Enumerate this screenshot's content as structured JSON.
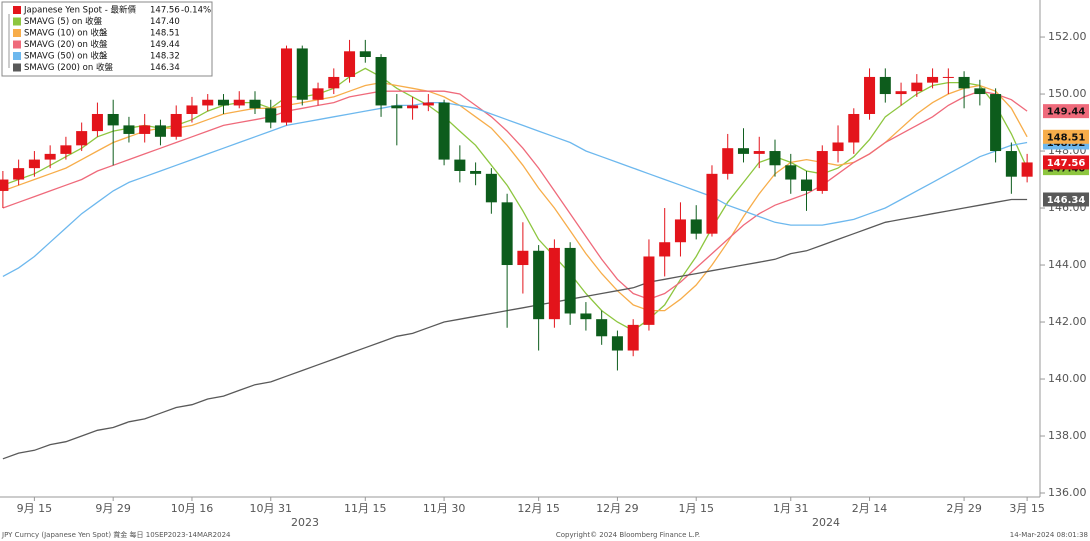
{
  "chart_data": {
    "type": "candlestick",
    "candles": {
      "name": "Japanese Yen Spot - 最新價",
      "up_color": "#e3141b",
      "down_color": "#0d5c1c",
      "last_label": "147.56",
      "change_label": "-0.14%",
      "ohlc": [
        [
          146.6,
          147.3,
          146.0,
          147.0
        ],
        [
          147.0,
          147.7,
          146.8,
          147.4
        ],
        [
          147.4,
          148.0,
          147.1,
          147.7
        ],
        [
          147.7,
          148.2,
          147.4,
          147.9
        ],
        [
          147.9,
          148.5,
          147.7,
          148.2
        ],
        [
          148.2,
          149.0,
          148.0,
          148.7
        ],
        [
          148.7,
          149.7,
          148.5,
          149.3
        ],
        [
          149.3,
          149.8,
          147.5,
          148.9
        ],
        [
          148.9,
          149.2,
          148.3,
          148.6
        ],
        [
          148.6,
          149.3,
          148.3,
          148.9
        ],
        [
          148.9,
          149.1,
          148.2,
          148.5
        ],
        [
          148.5,
          149.6,
          148.4,
          149.3
        ],
        [
          149.3,
          149.9,
          149.0,
          149.6
        ],
        [
          149.6,
          150.0,
          149.4,
          149.8
        ],
        [
          149.8,
          150.0,
          149.3,
          149.6
        ],
        [
          149.6,
          150.1,
          149.5,
          149.8
        ],
        [
          149.8,
          150.1,
          149.3,
          149.5
        ],
        [
          149.5,
          149.8,
          148.8,
          149.0
        ],
        [
          149.0,
          151.7,
          148.9,
          151.6
        ],
        [
          151.6,
          151.7,
          149.6,
          149.8
        ],
        [
          149.8,
          150.4,
          149.6,
          150.2
        ],
        [
          150.2,
          150.9,
          150.0,
          150.6
        ],
        [
          150.6,
          151.9,
          150.4,
          151.5
        ],
        [
          151.5,
          151.9,
          151.1,
          151.3
        ],
        [
          151.3,
          151.4,
          149.2,
          149.6
        ],
        [
          149.6,
          150.0,
          148.2,
          149.5
        ],
        [
          149.5,
          149.9,
          149.1,
          149.6
        ],
        [
          149.6,
          150.0,
          149.4,
          149.7
        ],
        [
          149.7,
          149.8,
          147.5,
          147.7
        ],
        [
          147.7,
          148.2,
          146.9,
          147.3
        ],
        [
          147.3,
          147.6,
          146.8,
          147.2
        ],
        [
          147.2,
          147.4,
          145.8,
          146.2
        ],
        [
          146.2,
          146.5,
          141.8,
          144.0
        ],
        [
          144.0,
          145.5,
          143.0,
          144.5
        ],
        [
          144.5,
          144.7,
          141.0,
          142.1
        ],
        [
          142.1,
          144.9,
          141.8,
          144.6
        ],
        [
          144.6,
          144.8,
          141.9,
          142.3
        ],
        [
          142.3,
          142.7,
          141.7,
          142.1
        ],
        [
          142.1,
          142.4,
          141.2,
          141.5
        ],
        [
          141.5,
          141.7,
          140.3,
          141.0
        ],
        [
          141.0,
          142.1,
          140.8,
          141.9
        ],
        [
          141.9,
          144.9,
          141.7,
          144.3
        ],
        [
          144.3,
          146.0,
          143.6,
          144.8
        ],
        [
          144.8,
          146.2,
          144.3,
          145.6
        ],
        [
          145.6,
          146.1,
          144.9,
          145.1
        ],
        [
          145.1,
          147.5,
          145.0,
          147.2
        ],
        [
          147.2,
          148.6,
          147.0,
          148.1
        ],
        [
          148.1,
          148.8,
          147.6,
          147.9
        ],
        [
          147.9,
          148.5,
          147.4,
          148.0
        ],
        [
          148.0,
          148.4,
          147.1,
          147.5
        ],
        [
          147.5,
          147.9,
          146.5,
          147.0
        ],
        [
          147.0,
          147.3,
          145.9,
          146.6
        ],
        [
          146.6,
          148.2,
          146.5,
          148.0
        ],
        [
          148.0,
          148.9,
          147.6,
          148.3
        ],
        [
          148.3,
          149.5,
          147.9,
          149.3
        ],
        [
          149.3,
          150.9,
          149.1,
          150.6
        ],
        [
          150.6,
          150.9,
          149.7,
          150.0
        ],
        [
          150.0,
          150.4,
          149.6,
          150.1
        ],
        [
          150.1,
          150.7,
          149.9,
          150.4
        ],
        [
          150.4,
          150.9,
          150.2,
          150.6
        ],
        [
          150.6,
          150.9,
          150.0,
          150.6
        ],
        [
          150.6,
          150.8,
          149.5,
          150.2
        ],
        [
          150.2,
          150.5,
          149.6,
          150.0
        ],
        [
          150.0,
          150.2,
          147.6,
          148.0
        ],
        [
          148.0,
          148.3,
          146.5,
          147.1
        ],
        [
          147.1,
          147.9,
          146.9,
          147.6
        ]
      ]
    },
    "series": [
      {
        "name": "SMAVG (5)  on 收盤",
        "color": "#8dc63f",
        "last_label": "147.40",
        "values": [
          146.8,
          147.0,
          147.2,
          147.5,
          147.8,
          148.1,
          148.5,
          148.7,
          148.8,
          148.9,
          148.8,
          148.9,
          149.1,
          149.4,
          149.6,
          149.7,
          149.7,
          149.5,
          149.9,
          149.9,
          150.0,
          150.2,
          150.6,
          150.9,
          150.6,
          150.2,
          149.9,
          149.6,
          149.2,
          148.7,
          148.2,
          147.5,
          146.8,
          145.9,
          144.9,
          144.3,
          143.7,
          143.0,
          142.4,
          142.0,
          141.7,
          142.1,
          142.6,
          143.5,
          144.3,
          145.3,
          146.2,
          146.9,
          147.6,
          147.8,
          147.6,
          147.3,
          147.2,
          147.4,
          147.8,
          148.4,
          149.2,
          149.6,
          150.0,
          150.3,
          150.4,
          150.4,
          150.3,
          149.6,
          148.6,
          147.4
        ]
      },
      {
        "name": "SMAVG (10)  on 收盤",
        "color": "#f7ad4a",
        "last_label": "148.51",
        "values": [
          146.6,
          146.8,
          147.0,
          147.2,
          147.4,
          147.7,
          148.0,
          148.3,
          148.5,
          148.7,
          148.8,
          148.8,
          148.9,
          149.1,
          149.3,
          149.4,
          149.5,
          149.5,
          149.6,
          149.7,
          149.8,
          149.9,
          150.1,
          150.3,
          150.4,
          150.3,
          150.2,
          150.1,
          149.9,
          149.6,
          149.2,
          148.8,
          148.2,
          147.5,
          146.7,
          146.0,
          145.2,
          144.4,
          143.7,
          143.1,
          142.6,
          142.4,
          142.4,
          142.8,
          143.3,
          144.0,
          144.8,
          145.7,
          146.5,
          147.2,
          147.6,
          147.7,
          147.6,
          147.5,
          147.6,
          147.9,
          148.3,
          148.8,
          149.3,
          149.7,
          150.0,
          150.2,
          150.3,
          150.1,
          149.5,
          148.5
        ]
      },
      {
        "name": "SMAVG (20)  on 收盤",
        "color": "#ef6a7b",
        "last_label": "149.44",
        "values": [
          146.0,
          146.2,
          146.4,
          146.6,
          146.8,
          147.0,
          147.3,
          147.5,
          147.7,
          147.9,
          148.1,
          148.3,
          148.5,
          148.7,
          148.9,
          149.0,
          149.1,
          149.2,
          149.4,
          149.5,
          149.6,
          149.7,
          149.9,
          150.0,
          150.1,
          150.1,
          150.1,
          150.1,
          150.1,
          150.0,
          149.6,
          149.2,
          148.7,
          148.1,
          147.4,
          146.6,
          145.8,
          145.0,
          144.2,
          143.5,
          143.0,
          142.8,
          143.0,
          143.4,
          143.9,
          144.4,
          144.9,
          145.4,
          145.8,
          146.1,
          146.3,
          146.5,
          146.8,
          147.2,
          147.6,
          147.9,
          148.3,
          148.6,
          148.9,
          149.2,
          149.6,
          149.9,
          150.1,
          150.0,
          149.8,
          149.4
        ]
      },
      {
        "name": "SMAVG (50)  on 收盤",
        "color": "#6db8ee",
        "last_label": "148.32",
        "values": [
          143.6,
          143.9,
          144.3,
          144.8,
          145.3,
          145.8,
          146.2,
          146.6,
          146.9,
          147.1,
          147.3,
          147.5,
          147.7,
          147.9,
          148.1,
          148.3,
          148.5,
          148.7,
          148.9,
          149.0,
          149.1,
          149.2,
          149.3,
          149.4,
          149.5,
          149.6,
          149.6,
          149.7,
          149.7,
          149.6,
          149.5,
          149.3,
          149.1,
          148.9,
          148.7,
          148.5,
          148.3,
          148.0,
          147.8,
          147.6,
          147.4,
          147.2,
          147.0,
          146.8,
          146.6,
          146.4,
          146.1,
          145.9,
          145.7,
          145.5,
          145.4,
          145.4,
          145.4,
          145.5,
          145.6,
          145.8,
          146.0,
          146.3,
          146.6,
          146.9,
          147.2,
          147.5,
          147.8,
          148.0,
          148.2,
          148.3
        ]
      },
      {
        "name": "SMAVG (200)  on 收盤",
        "color": "#595959",
        "last_label": "146.34",
        "values": [
          137.2,
          137.4,
          137.5,
          137.7,
          137.8,
          138.0,
          138.2,
          138.3,
          138.5,
          138.6,
          138.8,
          139.0,
          139.1,
          139.3,
          139.4,
          139.6,
          139.8,
          139.9,
          140.1,
          140.3,
          140.5,
          140.7,
          140.9,
          141.1,
          141.3,
          141.5,
          141.6,
          141.8,
          142.0,
          142.1,
          142.2,
          142.3,
          142.4,
          142.5,
          142.6,
          142.7,
          142.8,
          142.9,
          143.0,
          143.1,
          143.2,
          143.4,
          143.5,
          143.6,
          143.7,
          143.8,
          143.9,
          144.0,
          144.1,
          144.2,
          144.4,
          144.5,
          144.7,
          144.9,
          145.1,
          145.3,
          145.5,
          145.6,
          145.7,
          145.8,
          145.9,
          146.0,
          146.1,
          146.2,
          146.3,
          146.3
        ]
      }
    ],
    "categories": [
      null,
      null,
      "9月 15",
      null,
      null,
      null,
      null,
      "9月 29",
      null,
      null,
      null,
      null,
      "10月 16",
      null,
      null,
      null,
      null,
      "10月 31",
      null,
      null,
      null,
      null,
      null,
      "11月 15",
      null,
      null,
      null,
      null,
      "11月 30",
      null,
      null,
      null,
      null,
      null,
      "12月 15",
      null,
      null,
      null,
      null,
      "12月 29",
      null,
      null,
      null,
      null,
      "1月 15",
      null,
      null,
      null,
      null,
      null,
      "1月 31",
      null,
      null,
      null,
      null,
      "2月 14",
      null,
      null,
      null,
      null,
      null,
      "2月 29",
      null,
      null,
      null,
      "3月 15"
    ],
    "year_labels": [
      "2023",
      "2024"
    ],
    "ylim": [
      135.86,
      153.3
    ],
    "yticks": [
      {
        "value": 136,
        "label": "136.00"
      },
      {
        "value": 138,
        "label": "138.00"
      },
      {
        "value": 140,
        "label": "140.00"
      },
      {
        "value": 142,
        "label": "142.00"
      },
      {
        "value": 144,
        "label": "144.00"
      },
      {
        "value": 146,
        "label": "146.00"
      },
      {
        "value": 148,
        "label": "148.00"
      },
      {
        "value": 150,
        "label": "150.00"
      },
      {
        "value": 152,
        "label": "152.00"
      }
    ],
    "grid": false,
    "footer": {
      "left": "JPY Curncy (Japanese Yen Spot) 賞金  每日 10SEP2023-14MAR2024",
      "center": "Copyright© 2024 Bloomberg Finance L.P.",
      "right": "14-Mar-2024 08:01:38"
    }
  }
}
